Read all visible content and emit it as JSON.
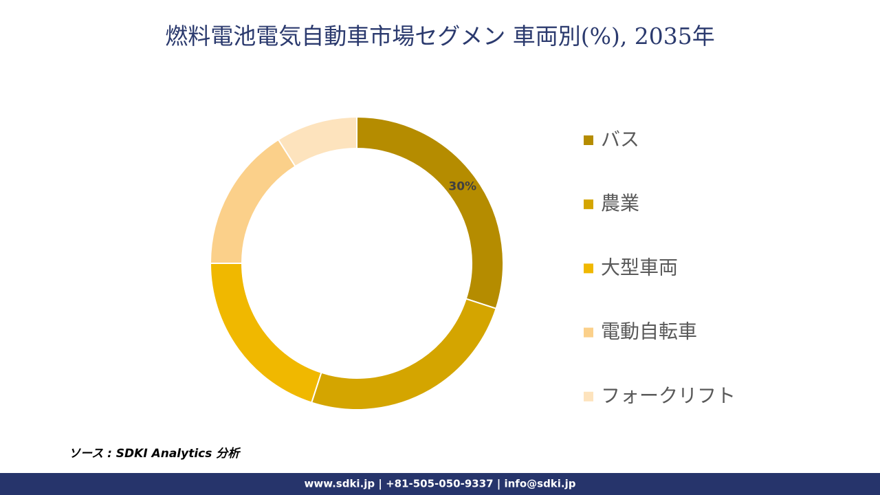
{
  "chart_data": {
    "type": "donut",
    "title": "燃料電池電気自動車市場セグメン 車両別(%), 2035年",
    "categories": [
      "バス",
      "農業",
      "大型車両",
      "電動自転車",
      "フォークリフト"
    ],
    "values": [
      30,
      25,
      20,
      16,
      9
    ],
    "value_labels": [
      "30%",
      null,
      null,
      null,
      null
    ],
    "colors": [
      "#b58c00",
      "#d4a500",
      "#f0b800",
      "#fbd08a",
      "#fde3bd"
    ],
    "legend": "right"
  },
  "source": "ソース : SDKI Analytics 分析",
  "footer": "www.sdki.jp | +81-505-050-9337 | info@sdki.jp"
}
